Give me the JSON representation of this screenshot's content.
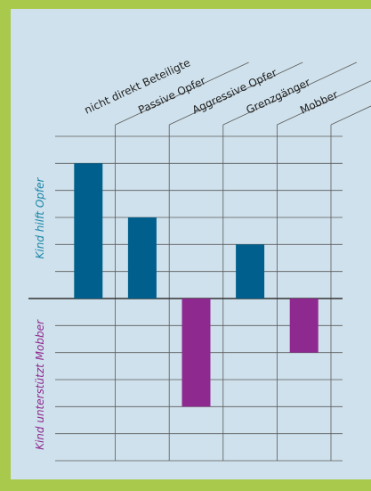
{
  "chart_data": {
    "type": "bar",
    "categories": [
      "nicht direkt Beteiligte",
      "Passive Opfer",
      "Aggressive Opfer",
      "Grenzgänger",
      "Mobber"
    ],
    "values": [
      5,
      3,
      -4,
      2,
      -2
    ],
    "colors": [
      "#005f8c",
      "#005f8c",
      "#8e2a8f",
      "#005f8c",
      "#8e2a8f"
    ],
    "ylabel_top": "Kind hilft Opfer",
    "ylabel_top_color": "#1a86a8",
    "ylabel_bottom": "Kind unterstützt Mobber",
    "ylabel_bottom_color": "#8e2a8f",
    "ylim": [
      -6,
      6
    ],
    "yticks": [
      -6,
      -5,
      -4,
      -3,
      -2,
      -1,
      0,
      1,
      2,
      3,
      4,
      5,
      6
    ],
    "grid": true
  }
}
